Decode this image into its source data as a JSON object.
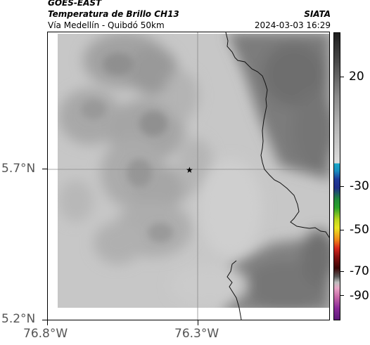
{
  "header": {
    "source": "GOES-EAST",
    "product": "Temperatura de Brillo CH13",
    "region": "Vía Medellín - Quibdó 50km",
    "org": "SIATA",
    "timestamp": "2024-03-03 16:29"
  },
  "map": {
    "lat_ticks": [
      "5.7°N",
      "5.2°N"
    ],
    "lon_ticks": [
      "76.8°W",
      "76.3°W"
    ],
    "marker": "station-star",
    "features": [
      "brightness-temperature-field",
      "coastline",
      "border-lines",
      "gridlines"
    ]
  },
  "colorbar": {
    "ticks": [
      "20",
      "-30",
      "-50",
      "-70",
      "-90"
    ],
    "colors": {
      "warm_gray": "#c8c8c8",
      "dark_gray": "#4a4a4a",
      "cyan": "#17a7c8",
      "blue": "#1f3a9a",
      "green": "#2aa32a",
      "yellow": "#e9e520",
      "red": "#d8261c",
      "dark_red": "#5a0a0a",
      "pink": "#e8a6c6",
      "purple": "#8a2a9a"
    }
  }
}
